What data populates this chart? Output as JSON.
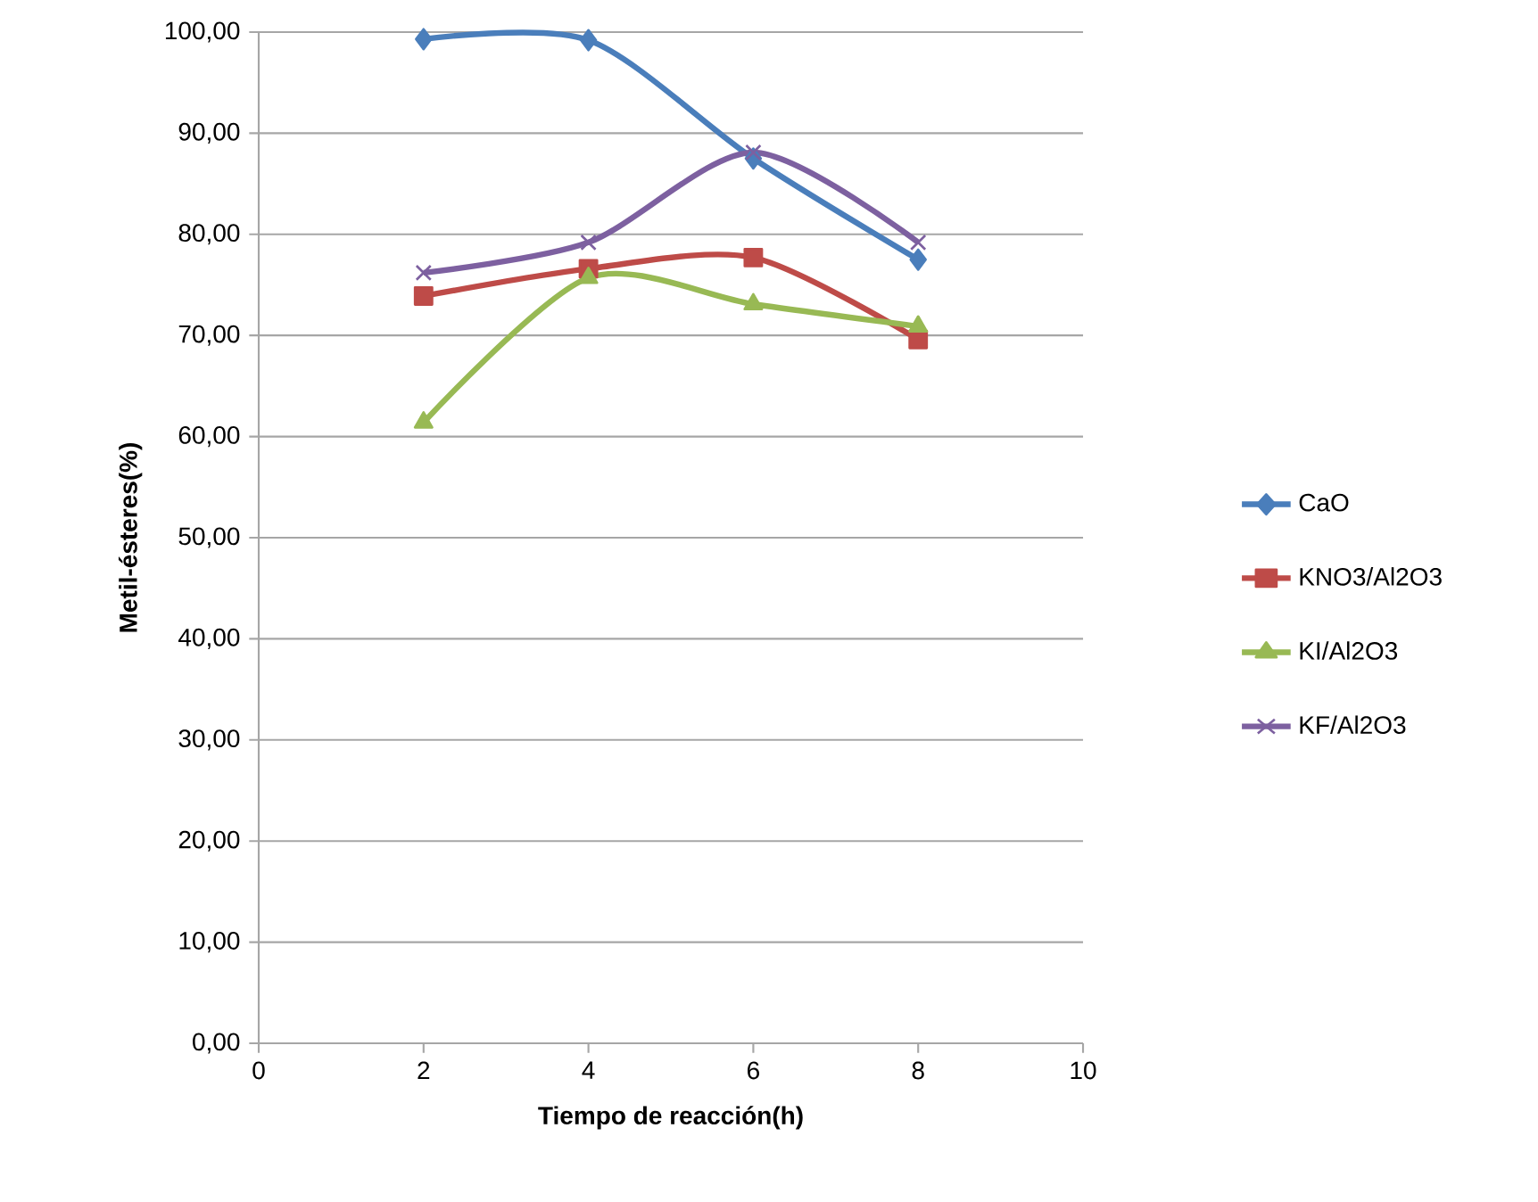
{
  "chart_data": {
    "type": "line",
    "xlabel": "Tiempo de reacción(h)",
    "ylabel": "Metil-ésteres(%)",
    "x": [
      2,
      4,
      6,
      8
    ],
    "series": [
      {
        "name": "CaO",
        "color": "#4a7ebb",
        "marker": "diamond",
        "values": [
          99.3,
          99.2,
          87.5,
          77.5
        ]
      },
      {
        "name": "KNO3/Al2O3",
        "color": "#be4b48",
        "marker": "square",
        "values": [
          73.9,
          76.6,
          77.7,
          69.6
        ]
      },
      {
        "name": "KI/Al2O3",
        "color": "#98b954",
        "marker": "triangle",
        "values": [
          61.4,
          75.7,
          73.1,
          70.9
        ]
      },
      {
        "name": "KF/Al2O3",
        "color": "#7d60a0",
        "marker": "cross",
        "values": [
          76.2,
          79.2,
          88.1,
          79.2
        ]
      }
    ],
    "xlim": [
      0,
      10
    ],
    "xticks": [
      0,
      2,
      4,
      6,
      8,
      10
    ],
    "ylim": [
      0,
      100
    ],
    "yticks": [
      {
        "value": 0,
        "label": "0,00"
      },
      {
        "value": 10,
        "label": "10,00"
      },
      {
        "value": 20,
        "label": "20,00"
      },
      {
        "value": 30,
        "label": "30,00"
      },
      {
        "value": 40,
        "label": "40,00"
      },
      {
        "value": 50,
        "label": "50,00"
      },
      {
        "value": 60,
        "label": "60,00"
      },
      {
        "value": 70,
        "label": "70,00"
      },
      {
        "value": 80,
        "label": "80,00"
      },
      {
        "value": 90,
        "label": "90,00"
      },
      {
        "value": 100,
        "label": "100,00"
      }
    ],
    "grid": "y",
    "legend": "right",
    "line_style": "solid"
  }
}
